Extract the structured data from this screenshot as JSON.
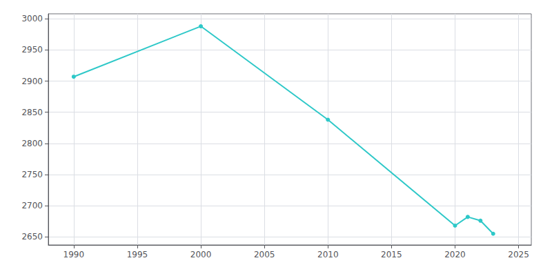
{
  "chart_data": {
    "type": "line",
    "x": [
      1990,
      2000,
      2010,
      2020,
      2021,
      2022,
      2023
    ],
    "values": [
      2907,
      2988,
      2838,
      2668,
      2682,
      2676,
      2655
    ],
    "color": "#2ec8c8",
    "marker": "circle",
    "xlim": [
      1988,
      2026
    ],
    "ylim": [
      2637,
      3008
    ],
    "xticks": [
      1990,
      1995,
      2000,
      2005,
      2010,
      2015,
      2020,
      2025
    ],
    "yticks": [
      2650,
      2700,
      2750,
      2800,
      2850,
      2900,
      2950,
      3000
    ],
    "grid": true
  }
}
